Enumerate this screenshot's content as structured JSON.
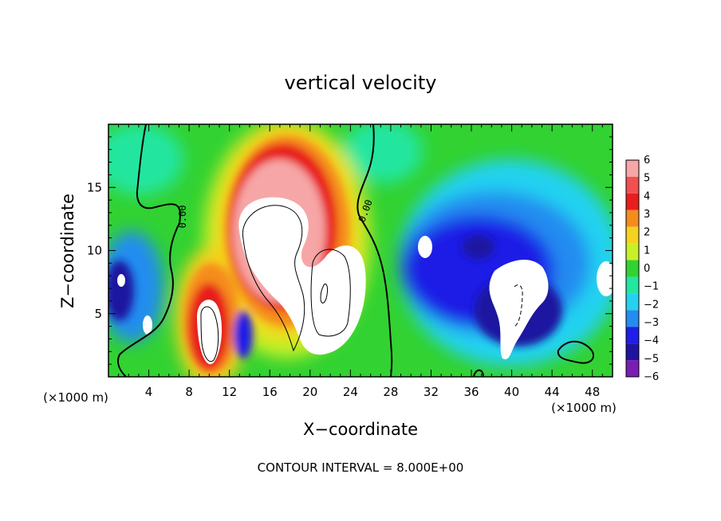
{
  "chart_data": {
    "type": "heatmap",
    "title": "vertical velocity",
    "xlabel": "X−coordinate",
    "ylabel": "Z−coordinate",
    "x_unit": "(×1000 m)",
    "y_unit": "(×1000 m)",
    "xlim": [
      0,
      50
    ],
    "ylim": [
      0,
      20
    ],
    "x_ticks": [
      4,
      8,
      12,
      16,
      20,
      24,
      28,
      32,
      36,
      40,
      44,
      48
    ],
    "y_ticks": [
      5,
      10,
      15
    ],
    "colorbar": {
      "levels": [
        6,
        5,
        4,
        3,
        2,
        1,
        0,
        -1,
        -2,
        -3,
        -4,
        -5,
        -6
      ],
      "labels": [
        "6",
        "5",
        "4",
        "3",
        "2",
        "1",
        "0",
        "−1",
        "−2",
        "−3",
        "−4",
        "−5",
        "−6"
      ],
      "colors": [
        "#f6a6a6",
        "#f25050",
        "#e81e1e",
        "#f58c1e",
        "#f5d21e",
        "#c8f028",
        "#32d232",
        "#23e6a0",
        "#23d2f0",
        "#238cf0",
        "#1e1ee6",
        "#1e14a0",
        "#781eb4"
      ]
    },
    "contour_labels": [
      "0.00",
      "0.00"
    ],
    "annotation": "CONTOUR INTERVAL = 8.000E+00",
    "features": [
      {
        "kind": "updraft_core",
        "x": 15.5,
        "z": 11.5,
        "value": 10
      },
      {
        "kind": "updraft_core",
        "x": 22,
        "z": 7,
        "value": 9
      },
      {
        "kind": "updraft_core",
        "x": 10,
        "z": 3.5,
        "value": 8
      },
      {
        "kind": "downdraft_core",
        "x": 40,
        "z": 5,
        "value": -8
      },
      {
        "kind": "downdraft_core",
        "x": 31,
        "z": 10,
        "value": -7
      },
      {
        "kind": "downdraft_core",
        "x": 48,
        "z": 7,
        "value": -6
      },
      {
        "kind": "downdraft_core",
        "x": 2,
        "z": 6,
        "value": -6
      }
    ]
  }
}
